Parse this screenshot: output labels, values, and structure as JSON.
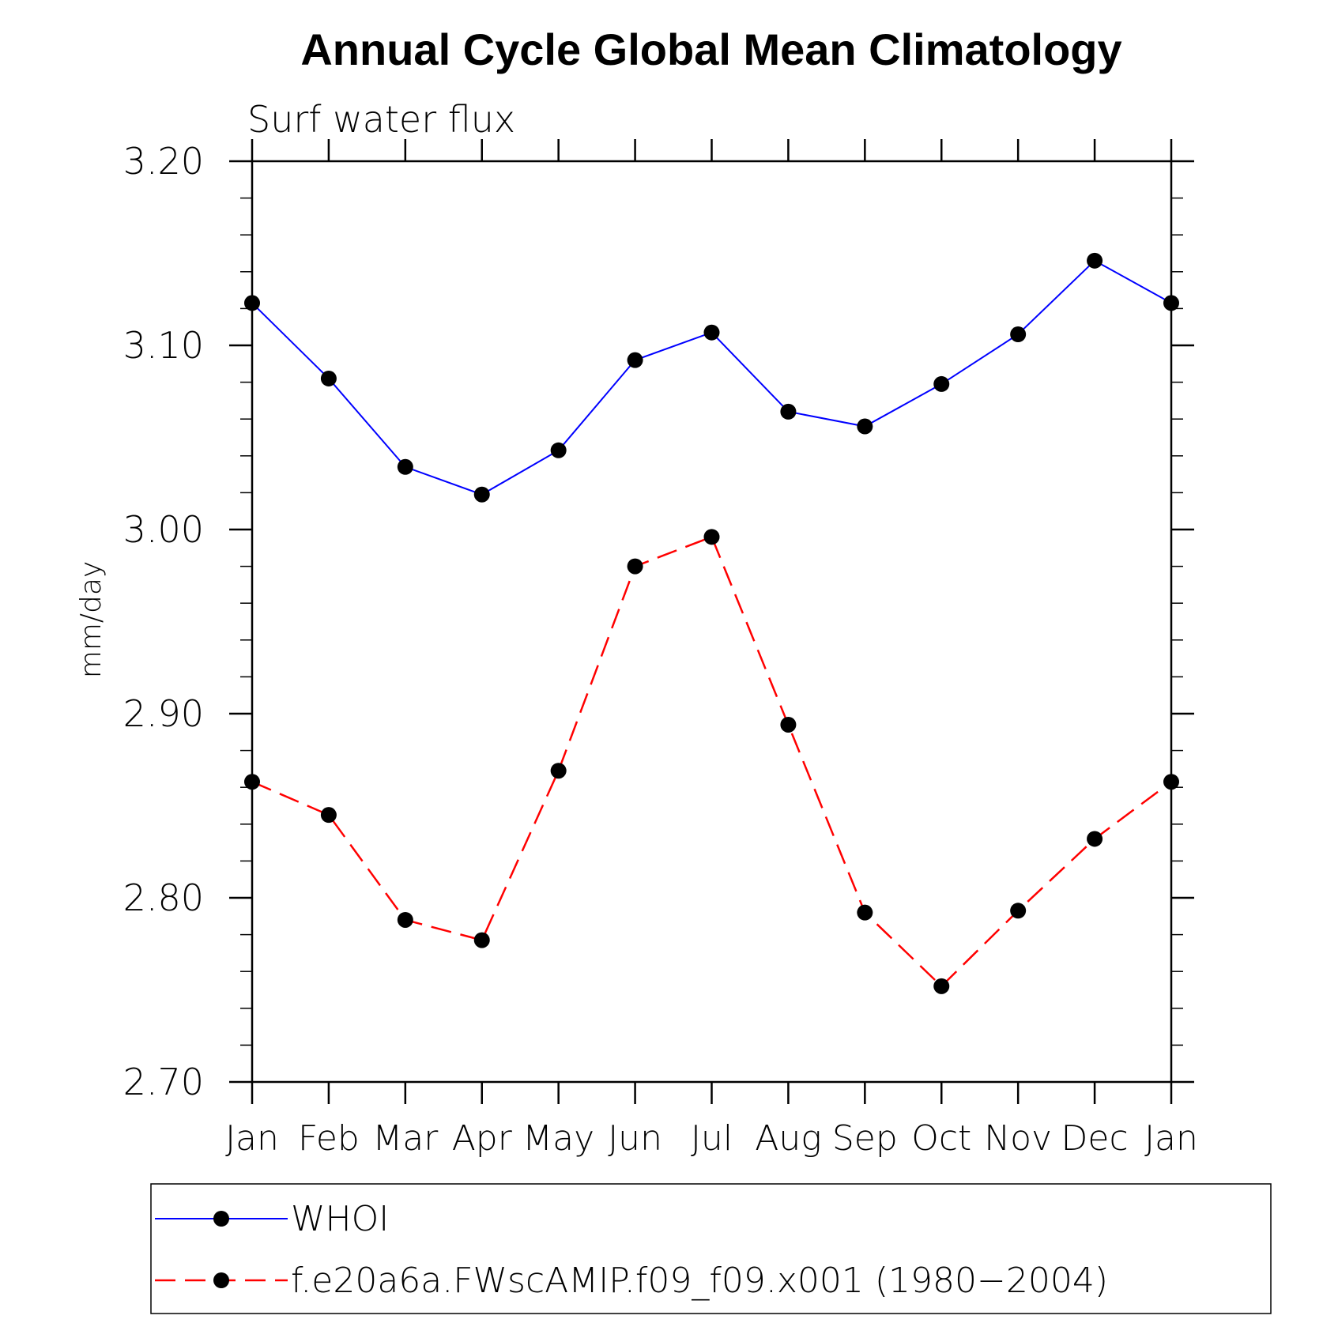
{
  "chart_data": {
    "type": "line",
    "title": "Annual Cycle Global Mean Climatology",
    "subtitle": "Surf water flux",
    "ylabel": "mm/day",
    "xlabel": "",
    "categories": [
      "Jan",
      "Feb",
      "Mar",
      "Apr",
      "May",
      "Jun",
      "Jul",
      "Aug",
      "Sep",
      "Oct",
      "Nov",
      "Dec",
      "Jan"
    ],
    "ylim": [
      2.7,
      3.2
    ],
    "yticks": [
      "2.70",
      "2.80",
      "2.90",
      "3.00",
      "3.10",
      "3.20"
    ],
    "grid": false,
    "legend_position": "bottom",
    "series": [
      {
        "name": "WHOI",
        "color": "#0000ff",
        "line_style": "solid",
        "marker": "filled-circle",
        "values": [
          3.123,
          3.082,
          3.034,
          3.019,
          3.043,
          3.092,
          3.107,
          3.064,
          3.056,
          3.079,
          3.106,
          3.146,
          3.123
        ]
      },
      {
        "name": "f.e20a6a.FWscAMIP.f09_f09.x001 (1980−2004)",
        "color": "#ff0000",
        "line_style": "dashed",
        "marker": "filled-circle",
        "values": [
          2.863,
          2.845,
          2.788,
          2.777,
          2.869,
          2.98,
          2.996,
          2.894,
          2.792,
          2.752,
          2.793,
          2.832,
          2.863
        ]
      }
    ]
  }
}
